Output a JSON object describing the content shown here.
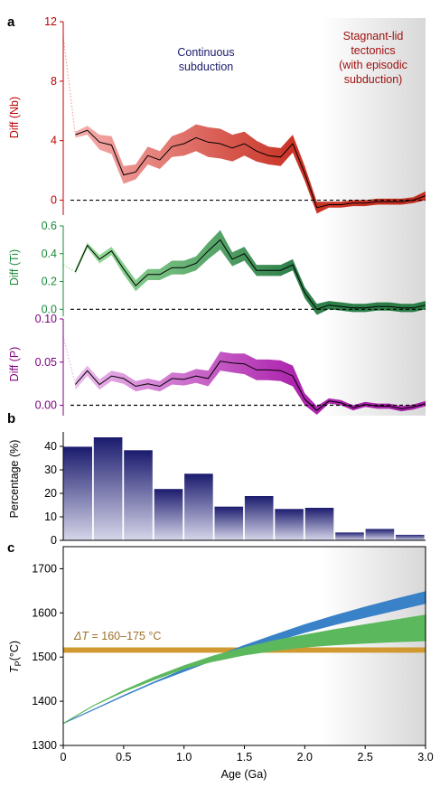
{
  "panel_labels": {
    "a": "a",
    "b": "b",
    "c": "c"
  },
  "annotations": {
    "continuous_line1": "Continuous",
    "continuous_line2": "subduction",
    "stagnant_line1": "Stagnant-lid",
    "stagnant_line2": "tectonics",
    "stagnant_line3": "(with episodic",
    "stagnant_line4": "subduction)",
    "delta_t_symbol": "ΔT",
    "delta_t_value": " = 160–175 °C"
  },
  "colors": {
    "nb_axis": "#c00000",
    "ti_axis": "#1a8a3a",
    "p_axis": "#800080",
    "continuous_text": "#1a1a6e",
    "stagnant_text": "#a01010",
    "delta_t_text": "#a0702a",
    "bar_dark": "#1a1a6e",
    "bar_light": "#d6d6ea",
    "model_blue": "#3a82c8",
    "model_green": "#5cb85c",
    "delta_t_band": "#d09a30",
    "stagnant_shade_start": "#ffffff",
    "stagnant_shade_end": "#d8d8d8"
  },
  "chart_data": [
    {
      "panel": "a",
      "type": "line",
      "subplot": "Nb",
      "ylabel": "Diff (Nb)",
      "ylim": [
        -1,
        12
      ],
      "yticks": [
        0,
        4,
        8,
        12
      ],
      "x": [
        0.1,
        0.2,
        0.3,
        0.4,
        0.5,
        0.6,
        0.7,
        0.8,
        0.9,
        1.0,
        1.1,
        1.2,
        1.3,
        1.4,
        1.5,
        1.6,
        1.7,
        1.8,
        1.9,
        2.0,
        2.1,
        2.2,
        2.3,
        2.4,
        2.5,
        2.6,
        2.7,
        2.8,
        2.9,
        3.0
      ],
      "y": [
        4.4,
        4.7,
        3.9,
        3.7,
        1.7,
        1.9,
        3.0,
        2.7,
        3.6,
        3.8,
        4.2,
        3.9,
        3.8,
        3.5,
        3.8,
        3.3,
        3.0,
        2.9,
        3.8,
        1.8,
        -0.5,
        -0.3,
        -0.3,
        -0.2,
        -0.2,
        -0.1,
        -0.1,
        -0.1,
        0.0,
        0.3
      ],
      "band_half_width": [
        0.2,
        0.3,
        0.5,
        0.6,
        0.6,
        0.5,
        0.6,
        0.6,
        0.7,
        0.8,
        0.9,
        1.0,
        1.0,
        0.9,
        0.8,
        0.7,
        0.6,
        0.6,
        0.6,
        0.5,
        0.4,
        0.2,
        0.2,
        0.2,
        0.2,
        0.2,
        0.2,
        0.2,
        0.2,
        0.3
      ],
      "dotted_x": [
        0.0,
        0.1
      ],
      "dotted_y": [
        11.0,
        4.4
      ],
      "reference_line": 0
    },
    {
      "panel": "a",
      "type": "line",
      "subplot": "Ti",
      "ylabel": "Diff (Ti)",
      "ylim": [
        -0.05,
        0.6
      ],
      "yticks": [
        0.0,
        0.2,
        0.4,
        0.6
      ],
      "x": [
        0.1,
        0.2,
        0.3,
        0.4,
        0.5,
        0.6,
        0.7,
        0.8,
        0.9,
        1.0,
        1.1,
        1.2,
        1.3,
        1.4,
        1.5,
        1.6,
        1.7,
        1.8,
        1.9,
        2.0,
        2.1,
        2.2,
        2.3,
        2.4,
        2.5,
        2.6,
        2.7,
        2.8,
        2.9,
        3.0
      ],
      "y": [
        0.27,
        0.46,
        0.36,
        0.42,
        0.29,
        0.17,
        0.25,
        0.25,
        0.3,
        0.3,
        0.33,
        0.42,
        0.5,
        0.36,
        0.4,
        0.28,
        0.28,
        0.28,
        0.32,
        0.12,
        0.0,
        0.03,
        0.02,
        0.01,
        0.01,
        0.02,
        0.02,
        0.01,
        0.01,
        0.03
      ],
      "band_half_width": [
        0.02,
        0.02,
        0.03,
        0.03,
        0.04,
        0.04,
        0.04,
        0.04,
        0.05,
        0.05,
        0.05,
        0.06,
        0.07,
        0.05,
        0.05,
        0.04,
        0.04,
        0.04,
        0.04,
        0.04,
        0.04,
        0.03,
        0.03,
        0.03,
        0.03,
        0.03,
        0.03,
        0.03,
        0.03,
        0.03
      ],
      "dotted_x": [
        0.0,
        0.1
      ],
      "dotted_y": [
        0.32,
        0.27
      ],
      "reference_line": 0
    },
    {
      "panel": "a",
      "type": "line",
      "subplot": "P",
      "ylabel": "Diff (P)",
      "ylim": [
        -0.012,
        0.1
      ],
      "yticks": [
        0.0,
        0.05,
        0.1
      ],
      "ytick_labels": [
        "0.00",
        "0.05",
        "0.10"
      ],
      "x": [
        0.1,
        0.2,
        0.3,
        0.4,
        0.5,
        0.6,
        0.7,
        0.8,
        0.9,
        1.0,
        1.1,
        1.2,
        1.3,
        1.4,
        1.5,
        1.6,
        1.7,
        1.8,
        1.9,
        2.0,
        2.1,
        2.2,
        2.3,
        2.4,
        2.5,
        2.6,
        2.7,
        2.8,
        2.9,
        3.0
      ],
      "y": [
        0.024,
        0.04,
        0.024,
        0.034,
        0.031,
        0.022,
        0.025,
        0.022,
        0.031,
        0.03,
        0.034,
        0.031,
        0.051,
        0.049,
        0.048,
        0.041,
        0.041,
        0.04,
        0.034,
        0.007,
        -0.006,
        0.005,
        0.003,
        -0.003,
        0.001,
        -0.001,
        -0.001,
        -0.004,
        -0.002,
        0.002
      ],
      "band_half_width": [
        0.006,
        0.006,
        0.006,
        0.006,
        0.006,
        0.006,
        0.006,
        0.006,
        0.007,
        0.007,
        0.008,
        0.009,
        0.011,
        0.011,
        0.012,
        0.012,
        0.012,
        0.012,
        0.012,
        0.007,
        0.005,
        0.003,
        0.003,
        0.003,
        0.003,
        0.003,
        0.003,
        0.003,
        0.003,
        0.003
      ],
      "dotted_x": [
        0.0,
        0.1
      ],
      "dotted_y": [
        0.08,
        0.024
      ],
      "reference_line": 0
    },
    {
      "panel": "b",
      "type": "bar",
      "ylabel": "Percentage (%)",
      "ylim": [
        0,
        50
      ],
      "yticks": [
        0,
        10,
        20,
        30,
        40
      ],
      "bin_edges": [
        0.0,
        0.25,
        0.5,
        0.75,
        1.0,
        1.25,
        1.5,
        1.75,
        2.0,
        2.25,
        2.5,
        2.75,
        3.0
      ],
      "values": [
        40,
        44,
        38.5,
        22,
        28.5,
        14.5,
        19,
        13.5,
        14,
        3.5,
        5,
        2.5
      ]
    },
    {
      "panel": "c",
      "type": "area",
      "xlabel": "Age (Ga)",
      "ylabel": "T_P(°C)",
      "ylabel_main": "T",
      "ylabel_sub": "P",
      "ylabel_unit": "(°C)",
      "xlim": [
        0,
        3.0
      ],
      "ylim": [
        1300,
        1750
      ],
      "xticks": [
        0,
        0.5,
        1.0,
        1.5,
        2.0,
        2.5,
        3.0
      ],
      "xtick_labels": [
        "0",
        "0.5",
        "1.0",
        "1.5",
        "2.0",
        "2.5",
        "3.0"
      ],
      "yticks": [
        1300,
        1400,
        1500,
        1600,
        1700
      ],
      "series": [
        {
          "x": [
            0,
            0.25,
            0.5,
            0.75,
            1.0,
            1.25,
            1.5,
            1.75,
            2.0,
            2.25,
            2.5,
            2.75,
            3.0
          ],
          "lower": [
            1350,
            1381,
            1412,
            1442,
            1468,
            1494,
            1516,
            1536,
            1556,
            1574,
            1590,
            1606,
            1622
          ],
          "upper": [
            1350,
            1381,
            1413,
            1443,
            1472,
            1500,
            1526,
            1550,
            1573,
            1594,
            1613,
            1631,
            1648
          ]
        },
        {
          "x": [
            0,
            0.25,
            0.5,
            0.75,
            1.0,
            1.25,
            1.5,
            1.75,
            2.0,
            2.25,
            2.5,
            2.75,
            3.0
          ],
          "lower": [
            1350,
            1390,
            1422,
            1449,
            1474,
            1491,
            1505,
            1515,
            1523,
            1528,
            1532,
            1535,
            1537
          ],
          "upper": [
            1350,
            1390,
            1424,
            1454,
            1480,
            1503,
            1521,
            1537,
            1550,
            1562,
            1573,
            1584,
            1595
          ]
        }
      ],
      "horizontal_band": [
        1510,
        1522
      ]
    }
  ]
}
